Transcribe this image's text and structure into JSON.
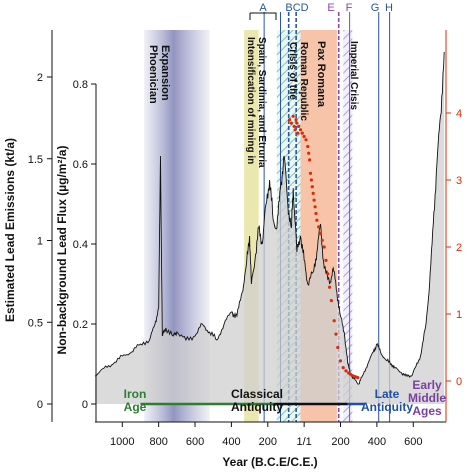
{
  "chart_data": {
    "type": "line",
    "xlabel": "Year (B.C.E/C.E.)",
    "ylabel_outer": "Estimated Lead Emissions (kt/a)",
    "ylabel_inner": "Non-background Lead Flux (µg/m²/a)",
    "xlim": [
      1150,
      -780
    ],
    "x_ticks": [
      {
        "value": 1000,
        "label": "1000"
      },
      {
        "value": 800,
        "label": "800"
      },
      {
        "value": 600,
        "label": "600"
      },
      {
        "value": 400,
        "label": "400"
      },
      {
        "value": 200,
        "label": "200"
      },
      {
        "value": 0,
        "label": "1/1"
      },
      {
        "value": -200,
        "label": "200"
      },
      {
        "value": -400,
        "label": "400"
      },
      {
        "value": -600,
        "label": "600"
      }
    ],
    "y_emissions_ticks": [
      "0",
      "0.5",
      "1",
      "1.5",
      "2"
    ],
    "y_emissions_values": [
      0,
      0.5,
      1,
      1.5,
      2
    ],
    "y_flux_ticks": [
      "0",
      "0.2",
      "0.4",
      "0.6",
      "0.8"
    ],
    "y_flux_values": [
      0,
      0.2,
      0.4,
      0.6,
      0.8
    ],
    "y_right_ticks": [
      "0",
      "1",
      "2",
      "3",
      "4"
    ],
    "y_right_values": [
      0,
      1,
      2,
      3,
      4
    ],
    "ylim_flux": [
      -0.04,
      0.89
    ],
    "ylim_right": [
      -0.15,
      4.5
    ],
    "periods": [
      {
        "label": "Phoenician Expansion",
        "x0": 880,
        "x1": 520,
        "color": "#9b9ec6",
        "style": "gradient"
      },
      {
        "label": "Intensification of mining in Spain, Sardinia, and Etruria",
        "x0": 330,
        "x1": 250,
        "color": "#e6e4a0",
        "style": "solid"
      },
      {
        "label": "Crisis of the Roman Republic",
        "x0": 150,
        "x1": 20,
        "color": "#9fd4c8",
        "style": "hatch"
      },
      {
        "label": "Pax Romana",
        "x0": 20,
        "x1": -180,
        "color": "#f6b89a",
        "style": "solid"
      },
      {
        "label": "Imperial Crisis",
        "x0": -215,
        "x1": -265,
        "color": "#b9b6e0",
        "style": "hatch"
      }
    ],
    "event_lines": [
      {
        "label": "A",
        "x": 220,
        "color": "#2b55a0"
      },
      {
        "label": "B",
        "x": 130,
        "color": "#2b55a0"
      },
      {
        "label": "C",
        "x": 85,
        "color": "#2b55a0"
      },
      {
        "label": "D",
        "x": 44,
        "color": "#2b55a0"
      },
      {
        "label": "E",
        "x": -190,
        "color": "#8e44ad"
      },
      {
        "label": "F",
        "x": -250,
        "color": "#8e44ad"
      },
      {
        "label": "G",
        "x": -410,
        "color": "#2b55a0"
      },
      {
        "label": "H",
        "x": -470,
        "color": "#2b55a0"
      }
    ],
    "eras": [
      {
        "label": "Iron Age",
        "x": 1000,
        "color": "#2e7d32",
        "line": [
          900,
          160
        ]
      },
      {
        "label": "Classical Antiquity",
        "x": 325,
        "color": "#111111",
        "line": [
          160,
          -240
        ]
      },
      {
        "label": "Late Antiquity",
        "x": -475,
        "color": "#1e4fa3",
        "line": [
          -240,
          -330
        ]
      },
      {
        "label": "Early Middle Ages",
        "x": -720,
        "color": "#7b3fa0",
        "line": []
      }
    ],
    "flux_series": {
      "name": "",
      "points": [
        [
          1150,
          0.07
        ],
        [
          1100,
          0.09
        ],
        [
          1050,
          0.1
        ],
        [
          1000,
          0.12
        ],
        [
          950,
          0.13
        ],
        [
          900,
          0.15
        ],
        [
          850,
          0.16
        ],
        [
          820,
          0.2
        ],
        [
          800,
          0.24
        ],
        [
          790,
          0.62
        ],
        [
          780,
          0.17
        ],
        [
          760,
          0.19
        ],
        [
          720,
          0.17
        ],
        [
          700,
          0.18
        ],
        [
          650,
          0.16
        ],
        [
          600,
          0.17
        ],
        [
          560,
          0.2
        ],
        [
          520,
          0.18
        ],
        [
          480,
          0.16
        ],
        [
          440,
          0.2
        ],
        [
          400,
          0.23
        ],
        [
          370,
          0.22
        ],
        [
          340,
          0.28
        ],
        [
          320,
          0.34
        ],
        [
          300,
          0.42
        ],
        [
          290,
          0.3
        ],
        [
          270,
          0.36
        ],
        [
          250,
          0.44
        ],
        [
          230,
          0.4
        ],
        [
          210,
          0.5
        ],
        [
          190,
          0.56
        ],
        [
          170,
          0.46
        ],
        [
          150,
          0.44
        ],
        [
          130,
          0.54
        ],
        [
          110,
          0.62
        ],
        [
          90,
          0.5
        ],
        [
          70,
          0.44
        ],
        [
          60,
          0.54
        ],
        [
          40,
          0.38
        ],
        [
          20,
          0.42
        ],
        [
          0,
          0.36
        ],
        [
          -20,
          0.3
        ],
        [
          -50,
          0.33
        ],
        [
          -70,
          0.38
        ],
        [
          -90,
          0.45
        ],
        [
          -110,
          0.34
        ],
        [
          -140,
          0.3
        ],
        [
          -160,
          0.34
        ],
        [
          -180,
          0.28
        ],
        [
          -200,
          0.22
        ],
        [
          -220,
          0.18
        ],
        [
          -240,
          0.1
        ],
        [
          -260,
          0.07
        ],
        [
          -280,
          0.06
        ],
        [
          -300,
          0.05
        ],
        [
          -320,
          0.07
        ],
        [
          -350,
          0.1
        ],
        [
          -380,
          0.13
        ],
        [
          -400,
          0.15
        ],
        [
          -420,
          0.13
        ],
        [
          -450,
          0.11
        ],
        [
          -480,
          0.1
        ],
        [
          -500,
          0.09
        ],
        [
          -530,
          0.08
        ],
        [
          -560,
          0.07
        ],
        [
          -590,
          0.07
        ],
        [
          -610,
          0.09
        ],
        [
          -640,
          0.12
        ],
        [
          -670,
          0.2
        ],
        [
          -690,
          0.3
        ],
        [
          -710,
          0.45
        ],
        [
          -730,
          0.6
        ],
        [
          -750,
          0.72
        ],
        [
          -770,
          0.88
        ]
      ]
    },
    "red_scatter": {
      "name": "",
      "points": [
        [
          80,
          3.9
        ],
        [
          70,
          3.85
        ],
        [
          60,
          3.95
        ],
        [
          55,
          3.8
        ],
        [
          50,
          3.75
        ],
        [
          45,
          3.9
        ],
        [
          40,
          3.85
        ],
        [
          35,
          3.7
        ],
        [
          30,
          3.8
        ],
        [
          20,
          3.75
        ],
        [
          10,
          3.7
        ],
        [
          0,
          3.65
        ],
        [
          -10,
          3.6
        ],
        [
          -20,
          3.5
        ],
        [
          -25,
          3.4
        ],
        [
          -30,
          3.3
        ],
        [
          -35,
          3.1
        ],
        [
          -40,
          3.0
        ],
        [
          -45,
          2.9
        ],
        [
          -50,
          2.8
        ],
        [
          -55,
          2.7
        ],
        [
          -60,
          2.6
        ],
        [
          -65,
          2.5
        ],
        [
          -70,
          2.4
        ],
        [
          -80,
          2.3
        ],
        [
          -90,
          2.2
        ],
        [
          -100,
          2.1
        ],
        [
          -110,
          2.0
        ],
        [
          -120,
          1.8
        ],
        [
          -130,
          1.6
        ],
        [
          -140,
          1.4
        ],
        [
          -150,
          1.2
        ],
        [
          -165,
          0.9
        ],
        [
          -175,
          0.7
        ],
        [
          -185,
          0.5
        ],
        [
          -200,
          0.3
        ],
        [
          -215,
          0.2
        ],
        [
          -230,
          0.15
        ],
        [
          -245,
          0.12
        ],
        [
          -255,
          0.1
        ],
        [
          -265,
          0.08
        ],
        [
          -275,
          0.07
        ],
        [
          -285,
          0.06
        ],
        [
          -295,
          0.05
        ]
      ]
    },
    "annotations": [
      "A",
      "BCD",
      "E",
      "F",
      "G",
      "H"
    ]
  }
}
